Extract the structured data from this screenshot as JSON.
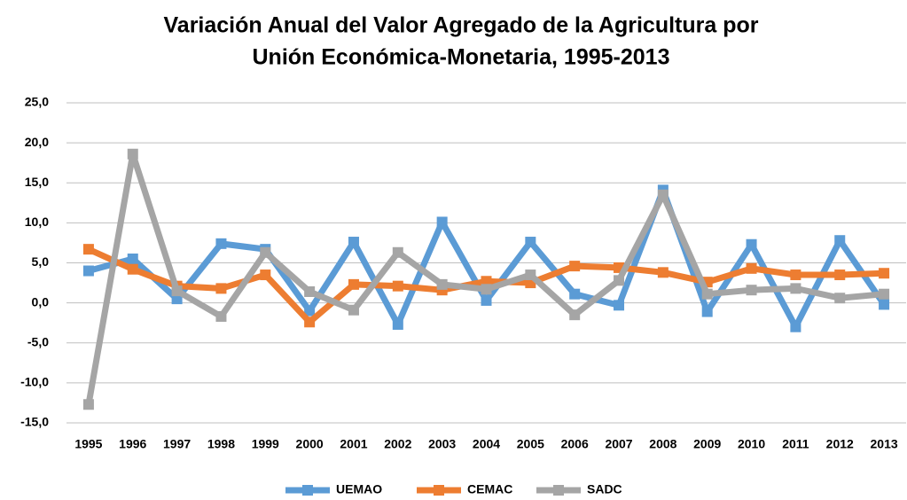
{
  "chart_data": {
    "type": "line",
    "title": [
      "Variación Anual del Valor Agregado de la Agricultura por",
      "Unión Económica-Monetaria, 1995-2013"
    ],
    "categories": [
      "1995",
      "1996",
      "1997",
      "1998",
      "1999",
      "2000",
      "2001",
      "2002",
      "2003",
      "2004",
      "2005",
      "2006",
      "2007",
      "2008",
      "2009",
      "2010",
      "2011",
      "2012",
      "2013"
    ],
    "series": [
      {
        "name": "UEMAO",
        "color": "#5b9bd5",
        "values": [
          4.0,
          5.5,
          0.5,
          7.4,
          6.7,
          -1.0,
          7.6,
          -2.7,
          10.1,
          0.3,
          7.6,
          1.1,
          -0.3,
          14.1,
          -1.1,
          7.3,
          -3.0,
          7.8,
          -0.2
        ]
      },
      {
        "name": "CEMAC",
        "color": "#ed7d31",
        "values": [
          6.7,
          4.2,
          2.1,
          1.8,
          3.5,
          -2.4,
          2.3,
          2.1,
          1.6,
          2.7,
          2.5,
          4.6,
          4.4,
          3.8,
          2.6,
          4.3,
          3.5,
          3.5,
          3.7
        ]
      },
      {
        "name": "SADC",
        "color": "#a5a5a5",
        "values": [
          -12.7,
          18.6,
          1.5,
          -1.7,
          6.3,
          1.4,
          -0.9,
          6.3,
          2.3,
          1.7,
          3.5,
          -1.5,
          2.8,
          13.5,
          1.1,
          1.6,
          1.8,
          0.6,
          1.1
        ]
      }
    ],
    "ylim": [
      -15,
      25
    ],
    "yticks": [
      {
        "value": -15,
        "label": "-15,0"
      },
      {
        "value": -10,
        "label": "-10,0"
      },
      {
        "value": -5,
        "label": "-5,0"
      },
      {
        "value": 0,
        "label": "0,0"
      },
      {
        "value": 5,
        "label": "5,0"
      },
      {
        "value": 10,
        "label": "10,0"
      },
      {
        "value": 15,
        "label": "15,0"
      },
      {
        "value": 20,
        "label": "20,0"
      },
      {
        "value": 25,
        "label": "25,0"
      }
    ],
    "grid": true,
    "legend": "bottom"
  }
}
